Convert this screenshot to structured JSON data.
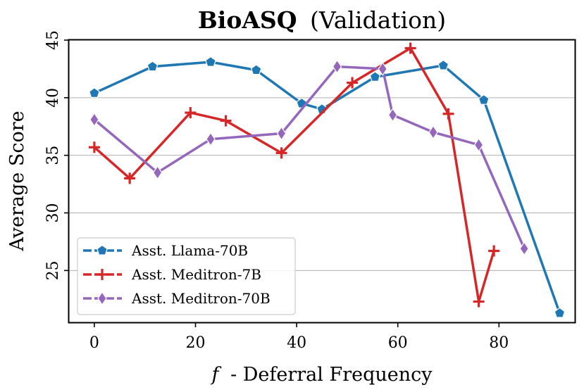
{
  "chart_data": {
    "type": "line",
    "title_bold": "BioASQ",
    "title_rest": "(Validation)",
    "xlabel_var": "f",
    "xlabel_rest": "- Deferral Frequency",
    "ylabel": "Average Score",
    "xlim": [
      -5,
      95
    ],
    "ylim": [
      20.5,
      45
    ],
    "xticks": [
      0,
      20,
      40,
      60,
      80
    ],
    "yticks": [
      25,
      30,
      35,
      40,
      45
    ],
    "grid": "horizontal",
    "legend_position": "lower-left",
    "series": [
      {
        "name": "Asst. Llama-70B",
        "color": "#1f77b4",
        "marker": "pentagon",
        "x": [
          0,
          11.5,
          23,
          32,
          41,
          45,
          55.5,
          69,
          77,
          92
        ],
        "y": [
          40.4,
          42.7,
          43.1,
          42.4,
          39.5,
          39.0,
          41.8,
          42.8,
          39.8,
          21.3
        ]
      },
      {
        "name": "Asst. Meditron-7B",
        "color": "#d62728",
        "marker": "plus",
        "x": [
          0,
          7,
          19,
          26,
          37,
          51,
          62.5,
          70,
          76,
          79
        ],
        "y": [
          35.7,
          33.0,
          38.7,
          38.0,
          35.2,
          41.3,
          44.3,
          38.6,
          22.3,
          26.7
        ]
      },
      {
        "name": "Asst. Meditron-70B",
        "color": "#9467bd",
        "marker": "diamond",
        "x": [
          0,
          12.5,
          23,
          37,
          48,
          57,
          59,
          67,
          76,
          85
        ],
        "y": [
          38.1,
          33.5,
          36.4,
          36.9,
          42.7,
          42.5,
          38.5,
          37.0,
          35.9,
          26.9
        ]
      }
    ]
  }
}
